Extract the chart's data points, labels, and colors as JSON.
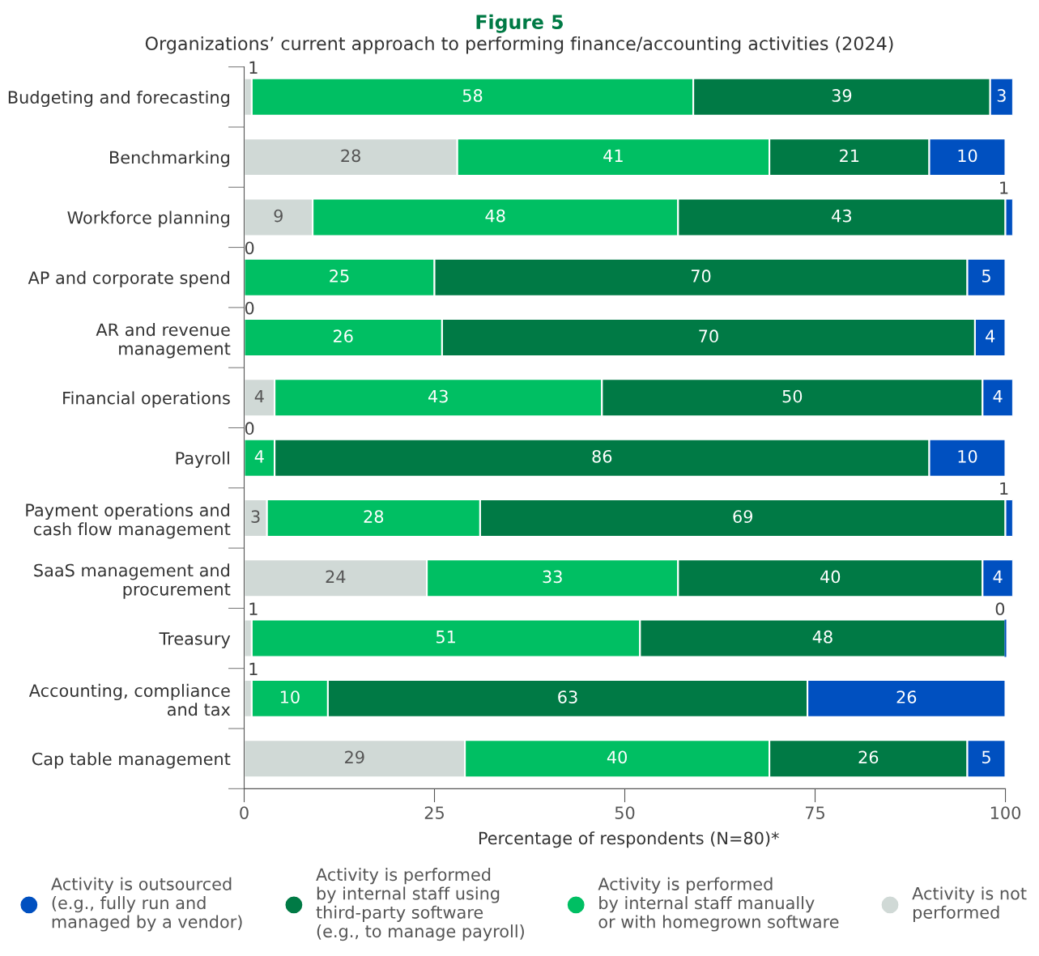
{
  "chart_data": {
    "type": "bar",
    "orientation": "horizontal",
    "stacked": true,
    "title": "Figure 5",
    "subtitle": "Organizations’ current approach to performing finance/accounting activities (2024)",
    "xlabel": "Percentage of respondents (N=80)*",
    "categories": [
      "Budgeting and forecasting",
      "Benchmarking",
      "Workforce planning",
      "AP and corporate spend",
      "AR and revenue\nmanagement",
      "Financial operations",
      "Payroll",
      "Payment operations and\ncash flow management",
      "SaaS management and\nprocurement",
      "Treasury",
      "Accounting, compliance\nand tax",
      "Cap table management"
    ],
    "series": [
      {
        "name": "Activity is not\nperformed",
        "color": "#d0d9d6",
        "values": [
          1,
          28,
          9,
          0,
          0,
          4,
          0,
          3,
          24,
          1,
          1,
          29
        ],
        "value_labels": [
          "1",
          "28",
          "9",
          "0",
          "0",
          "4",
          "0",
          "3",
          "24",
          "1",
          "1",
          "29"
        ]
      },
      {
        "name": "Activity is performed\nby internal staff manually\nor with homegrown software",
        "color": "#00bf63",
        "values": [
          58,
          41,
          48,
          25,
          26,
          43,
          4,
          28,
          33,
          51,
          10,
          40
        ],
        "value_labels": [
          "58",
          "41",
          "48",
          "25",
          "26",
          "43",
          "4",
          "28",
          "33",
          "51",
          "10",
          "40"
        ]
      },
      {
        "name": "Activity is performed\nby internal staff using\nthird-party software\n(e.g., to manage payroll)",
        "color": "#007a45",
        "values": [
          39,
          21,
          43,
          70,
          70,
          50,
          86,
          69,
          40,
          48,
          63,
          26
        ],
        "value_labels": [
          "39",
          "21",
          "43",
          "70",
          "70",
          "50",
          "86",
          "69",
          "40",
          "48",
          "63",
          "26"
        ]
      },
      {
        "name": "Activity is outsourced\n(e.g., fully run and\nmanaged by a vendor)",
        "color": "#0050c0",
        "values": [
          3,
          10,
          1,
          5,
          4,
          4,
          10,
          1,
          4,
          0,
          26,
          5
        ],
        "value_labels": [
          "3",
          "10",
          "1",
          "5",
          "4",
          "4",
          "10",
          "1",
          "4",
          "0",
          "26",
          "5"
        ]
      }
    ],
    "xlim": [
      0,
      101
    ],
    "xticks": [
      0,
      25,
      50,
      75,
      100
    ],
    "grid": false,
    "legend": "bottom"
  }
}
